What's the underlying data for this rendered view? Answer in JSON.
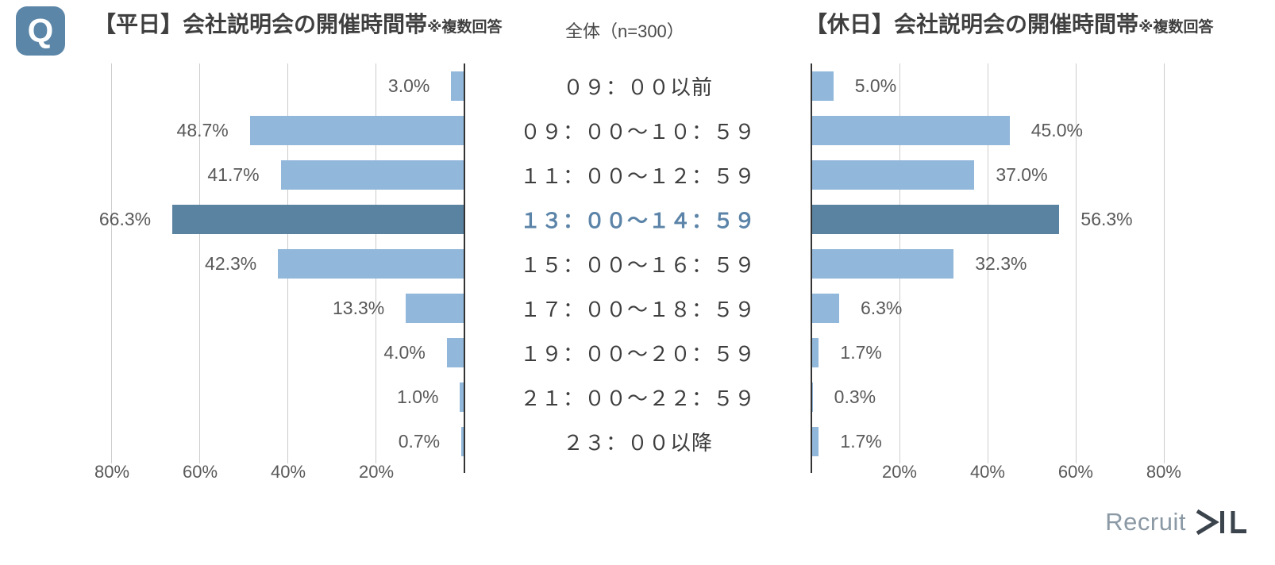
{
  "header": {
    "q_badge": "Q",
    "left_title": "【平日】会社説明会の開催時間帯",
    "left_title_note": "※複数回答",
    "sample_label": "全体（n=300）",
    "right_title": "【休日】会社説明会の開催時間帯",
    "right_title_note": "※複数回答"
  },
  "chart_data": {
    "type": "bar",
    "layout": "horizontal-butterfly",
    "title_left": "【平日】会社説明会の開催時間帯",
    "title_right": "【休日】会社説明会の開催時間帯",
    "sample": "全体（n=300）",
    "categories": [
      "０９：００以前",
      "０９：００～１０：５９",
      "１１：００～１２：５９",
      "１３：００～１４：５９",
      "１５：００～１６：５９",
      "１７：００～１８：５９",
      "１９：００～２０：５９",
      "２１：００～２２：５９",
      "２３：００以降"
    ],
    "highlight_index": 3,
    "series": [
      {
        "name": "平日",
        "key": "weekday",
        "side": "left",
        "values": [
          3.0,
          48.7,
          41.7,
          66.3,
          42.3,
          13.3,
          4.0,
          1.0,
          0.7
        ]
      },
      {
        "name": "休日",
        "key": "holiday",
        "side": "right",
        "values": [
          5.0,
          45.0,
          37.0,
          56.3,
          32.3,
          6.3,
          1.7,
          0.3,
          1.7
        ]
      }
    ],
    "value_suffix": "%",
    "axis": {
      "ticks": [
        20,
        40,
        60,
        80
      ],
      "tick_suffix": "%",
      "max": 91,
      "grid": true
    },
    "colors": {
      "bar": "#91b7db",
      "bar_highlight": "#5a82a1",
      "category_highlight": "#5b84a8",
      "q_badge": "#5b86a8",
      "gridline": "#cccccc",
      "axis_line": "#333333"
    },
    "legend": "none"
  },
  "footer": {
    "logo_text": "Recruit",
    "logo_mark": "MIL"
  }
}
